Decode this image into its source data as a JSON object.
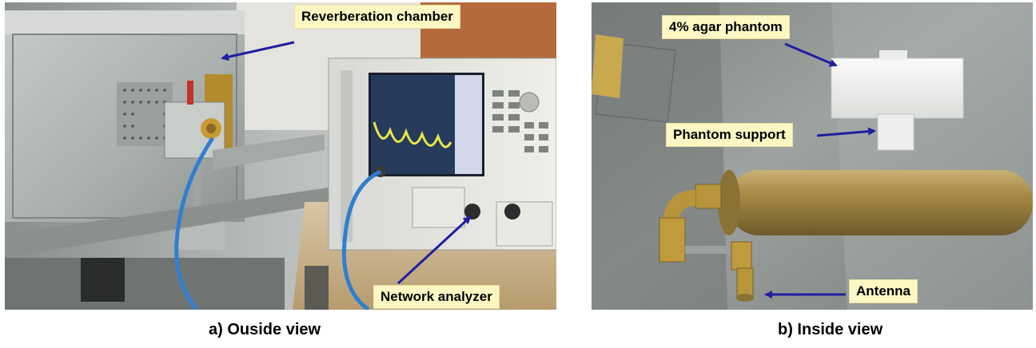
{
  "panels": {
    "outside": {
      "caption": "a) Ouside view",
      "labels": {
        "reverberation_chamber": "Reverberation chamber",
        "network_analyzer": "Network analyzer"
      }
    },
    "inside": {
      "caption": "b) Inside view",
      "labels": {
        "agar_phantom": "4% agar phantom",
        "phantom_support": "Phantom support",
        "antenna": "Antenna"
      }
    }
  },
  "colors": {
    "label_background": "#fdf7c3",
    "arrow": "#1f1fa0",
    "cable": "#2f7fd0",
    "brass": "#b8953a"
  }
}
